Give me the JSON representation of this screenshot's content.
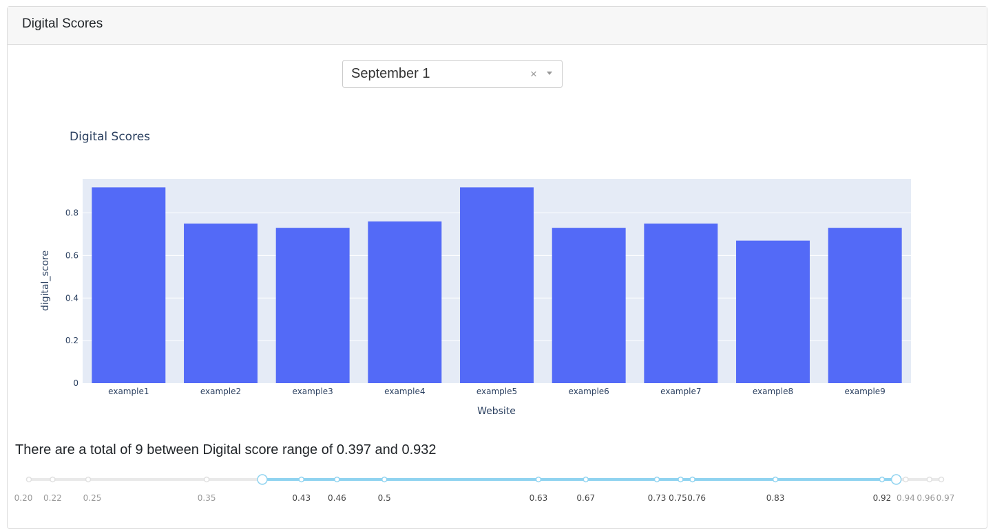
{
  "header": {
    "title": "Digital Scores"
  },
  "filter": {
    "selected": "September 1",
    "clear_symbol": "×"
  },
  "chart_data": {
    "type": "bar",
    "title": "Digital Scores",
    "xlabel": "Website",
    "ylabel": "digital_score",
    "categories": [
      "example1",
      "example2",
      "example3",
      "example4",
      "example5",
      "example6",
      "example7",
      "example8",
      "example9"
    ],
    "values": [
      0.92,
      0.75,
      0.73,
      0.76,
      0.92,
      0.73,
      0.75,
      0.67,
      0.73
    ],
    "ylim": [
      0,
      0.96
    ],
    "yticks": [
      "0",
      "0.2",
      "0.4",
      "0.6",
      "0.8"
    ],
    "grid": true,
    "colors": {
      "bar": "#536af7",
      "plot_bg": "#e5ebf6",
      "grid": "#ffffff",
      "text": "#2a3f5f"
    }
  },
  "summary": {
    "text": "There are a total of 9 between Digital score range of 0.397 and 0.932"
  },
  "range_slider": {
    "min": 0.2,
    "max": 0.97,
    "selected_low": 0.397,
    "selected_high": 0.932,
    "marks": [
      {
        "value": 0.2,
        "label": "0.20"
      },
      {
        "value": 0.22,
        "label": "0.22"
      },
      {
        "value": 0.25,
        "label": "0.25"
      },
      {
        "value": 0.35,
        "label": "0.35"
      },
      {
        "value": 0.43,
        "label": "0.43"
      },
      {
        "value": 0.46,
        "label": "0.46"
      },
      {
        "value": 0.5,
        "label": "0.5"
      },
      {
        "value": 0.63,
        "label": "0.63"
      },
      {
        "value": 0.67,
        "label": "0.67"
      },
      {
        "value": 0.73,
        "label": "0.73"
      },
      {
        "value": 0.75,
        "label": "0.75"
      },
      {
        "value": 0.76,
        "label": "0.76"
      },
      {
        "value": 0.83,
        "label": "0.83"
      },
      {
        "value": 0.92,
        "label": "0.92"
      },
      {
        "value": 0.94,
        "label": "0.94"
      },
      {
        "value": 0.96,
        "label": "0.96"
      },
      {
        "value": 0.97,
        "label": "0.97"
      }
    ],
    "colors": {
      "track": "#e9e9e9",
      "active": "#8fd3f0",
      "handle_border": "#8fd3f0"
    }
  }
}
